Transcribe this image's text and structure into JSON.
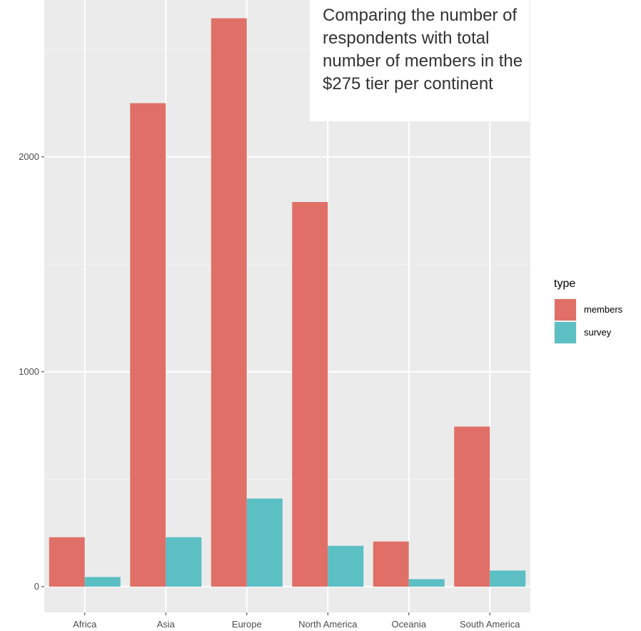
{
  "chart_data": {
    "type": "bar",
    "categories": [
      "Africa",
      "Asia",
      "Europe",
      "North America",
      "Oceania",
      "South America"
    ],
    "series": [
      {
        "name": "members",
        "color": "#e07067",
        "values": [
          230,
          2250,
          2645,
          1790,
          210,
          745
        ]
      },
      {
        "name": "survey",
        "color": "#5bbfc4",
        "values": [
          45,
          230,
          410,
          190,
          35,
          75
        ]
      }
    ],
    "title": "",
    "xlabel": "",
    "ylabel": "",
    "ylim": [
      -120,
      2730
    ],
    "yticks": [
      0,
      1000,
      2000
    ],
    "ytick_labels": [
      "0",
      "1000",
      "2000"
    ],
    "grid": true,
    "legend": {
      "title": "type",
      "placement": "right"
    },
    "annotation": "Comparing the number of respondents with total number of members in the $275 tier per continent"
  }
}
